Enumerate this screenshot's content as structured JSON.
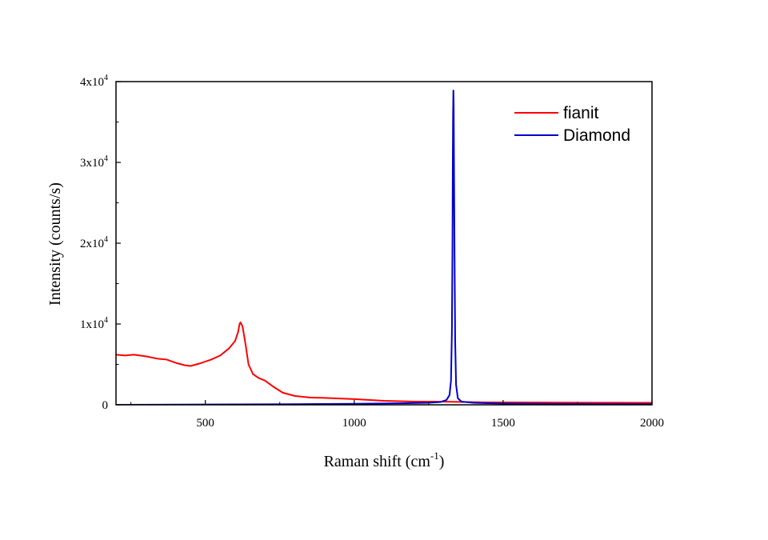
{
  "chart_data": {
    "type": "line",
    "xlabel": "Raman shift (cm",
    "xlabel_sup": "-1",
    "xlabel_close": ")",
    "ylabel": "Intensity (counts/s)",
    "xlim": [
      200,
      2000
    ],
    "ylim": [
      0,
      40000
    ],
    "x_ticks": [
      {
        "value": 500,
        "label": "500"
      },
      {
        "value": 1000,
        "label": "1000"
      },
      {
        "value": 1500,
        "label": "1500"
      },
      {
        "value": 2000,
        "label": "2000"
      }
    ],
    "y_ticks": [
      {
        "value": 0,
        "base": "0",
        "exp": ""
      },
      {
        "value": 10000,
        "base": "1x10",
        "exp": "4"
      },
      {
        "value": 20000,
        "base": "2x10",
        "exp": "4"
      },
      {
        "value": 30000,
        "base": "3x10",
        "exp": "4"
      },
      {
        "value": 40000,
        "base": "4x10",
        "exp": "4"
      }
    ],
    "legend_position": "top-right",
    "series": [
      {
        "name": "fianit",
        "color": "#ff0000",
        "points": [
          [
            200,
            6200
          ],
          [
            230,
            6100
          ],
          [
            260,
            6200
          ],
          [
            300,
            6000
          ],
          [
            340,
            5700
          ],
          [
            370,
            5600
          ],
          [
            400,
            5200
          ],
          [
            430,
            4900
          ],
          [
            450,
            4800
          ],
          [
            480,
            5100
          ],
          [
            520,
            5600
          ],
          [
            550,
            6100
          ],
          [
            580,
            7000
          ],
          [
            600,
            7900
          ],
          [
            610,
            9000
          ],
          [
            615,
            10000
          ],
          [
            618,
            10200
          ],
          [
            625,
            9700
          ],
          [
            635,
            7500
          ],
          [
            645,
            5000
          ],
          [
            660,
            3800
          ],
          [
            680,
            3300
          ],
          [
            700,
            3000
          ],
          [
            730,
            2200
          ],
          [
            760,
            1500
          ],
          [
            800,
            1100
          ],
          [
            850,
            900
          ],
          [
            900,
            850
          ],
          [
            1000,
            700
          ],
          [
            1100,
            500
          ],
          [
            1200,
            400
          ],
          [
            1300,
            380
          ],
          [
            1350,
            360
          ],
          [
            1450,
            300
          ],
          [
            1600,
            280
          ],
          [
            1800,
            260
          ],
          [
            2000,
            250
          ]
        ]
      },
      {
        "name": "Diamond",
        "color": "#0000cc",
        "points": [
          [
            200,
            0
          ],
          [
            400,
            20
          ],
          [
            600,
            50
          ],
          [
            800,
            80
          ],
          [
            1000,
            130
          ],
          [
            1150,
            180
          ],
          [
            1250,
            250
          ],
          [
            1290,
            350
          ],
          [
            1310,
            600
          ],
          [
            1320,
            1200
          ],
          [
            1325,
            3000
          ],
          [
            1328,
            9000
          ],
          [
            1330,
            20000
          ],
          [
            1331,
            30000
          ],
          [
            1332,
            36000
          ],
          [
            1333,
            38900
          ],
          [
            1334,
            37000
          ],
          [
            1335,
            30000
          ],
          [
            1337,
            18000
          ],
          [
            1339,
            8000
          ],
          [
            1342,
            2500
          ],
          [
            1348,
            800
          ],
          [
            1360,
            400
          ],
          [
            1400,
            250
          ],
          [
            1500,
            150
          ],
          [
            1700,
            100
          ],
          [
            2000,
            80
          ]
        ]
      }
    ]
  }
}
